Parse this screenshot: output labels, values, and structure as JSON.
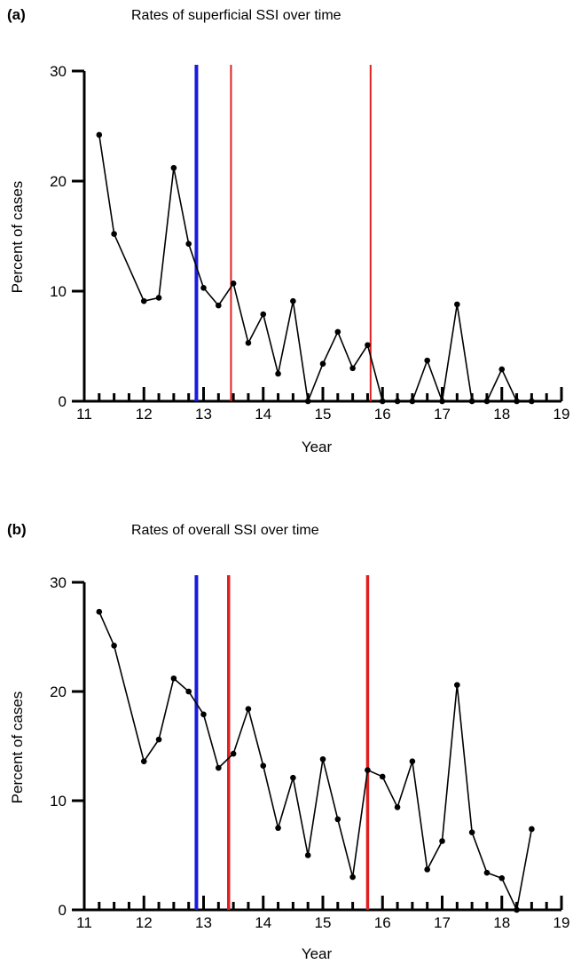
{
  "chart_data": [
    {
      "type": "line",
      "panel_label": "(a)",
      "title": "Rates of superficial SSI over time",
      "xlabel": "Year",
      "ylabel": "Percent of cases",
      "xlim": [
        11,
        19
      ],
      "ylim": [
        0,
        30
      ],
      "xticks": [
        "11",
        "12",
        "13",
        "14",
        "15",
        "16",
        "17",
        "18",
        "19"
      ],
      "yticks": [
        "0",
        "10",
        "20",
        "30"
      ],
      "grid": false,
      "vlines": [
        {
          "x": 12.88,
          "color": "#1a1adf"
        },
        {
          "x": 13.46,
          "color": "#e02020"
        },
        {
          "x": 15.8,
          "color": "#e02020"
        }
      ],
      "series": [
        {
          "color": "#000000",
          "x": [
            11.25,
            11.5,
            12.0,
            12.25,
            12.5,
            12.75,
            13.0,
            13.25,
            13.5,
            13.75,
            14.0,
            14.25,
            14.5,
            14.75,
            15.0,
            15.25,
            15.5,
            15.75,
            16.0,
            16.25,
            16.5,
            16.75,
            17.0,
            17.25,
            17.5,
            17.75,
            18.0,
            18.25,
            18.5
          ],
          "values": [
            24.2,
            15.2,
            9.1,
            9.4,
            21.2,
            14.3,
            10.3,
            8.7,
            10.7,
            5.3,
            7.9,
            2.5,
            9.1,
            0,
            3.4,
            6.3,
            3.0,
            5.1,
            0,
            0,
            0,
            3.7,
            0,
            8.8,
            0,
            0,
            2.9,
            0,
            0
          ]
        }
      ]
    },
    {
      "type": "line",
      "panel_label": "(b)",
      "title": "Rates of overall SSI over time",
      "xlabel": "Year",
      "ylabel": "Percent of cases",
      "xlim": [
        11,
        19
      ],
      "ylim": [
        0,
        30
      ],
      "xticks": [
        "11",
        "12",
        "13",
        "14",
        "15",
        "16",
        "17",
        "18",
        "19"
      ],
      "yticks": [
        "0",
        "10",
        "20",
        "30"
      ],
      "grid": false,
      "vlines": [
        {
          "x": 12.88,
          "color": "#1a1adf"
        },
        {
          "x": 13.42,
          "color": "#e02020"
        },
        {
          "x": 15.75,
          "color": "#e02020"
        }
      ],
      "series": [
        {
          "color": "#000000",
          "x": [
            11.25,
            11.5,
            12.0,
            12.25,
            12.5,
            12.75,
            13.0,
            13.25,
            13.5,
            13.75,
            14.0,
            14.25,
            14.5,
            14.75,
            15.0,
            15.25,
            15.5,
            15.75,
            16.0,
            16.25,
            16.5,
            16.75,
            17.0,
            17.25,
            17.5,
            17.75,
            18.0,
            18.25,
            18.5
          ],
          "values": [
            27.3,
            24.2,
            13.6,
            15.6,
            21.2,
            20.0,
            17.9,
            13.0,
            14.3,
            18.4,
            13.2,
            7.5,
            12.1,
            5.0,
            13.8,
            8.3,
            3.0,
            12.8,
            12.2,
            9.4,
            13.6,
            3.7,
            6.3,
            20.6,
            7.1,
            3.4,
            2.9,
            0,
            7.4
          ]
        }
      ]
    }
  ]
}
